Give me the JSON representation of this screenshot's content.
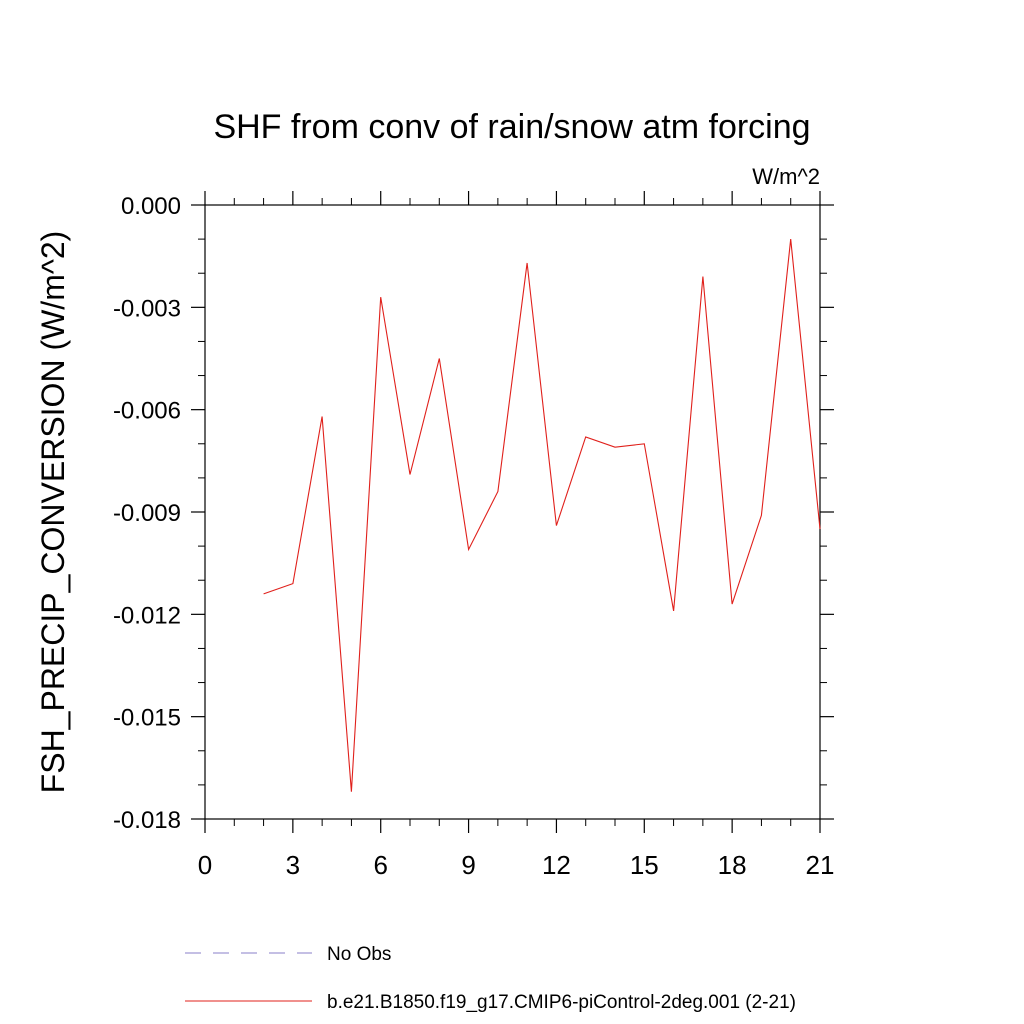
{
  "chart_data": {
    "type": "line",
    "title": "SHF from conv of rain/snow atm forcing",
    "units_label": "W/m^2",
    "ylabel": "FSH_PRECIP_CONVERSION  (W/m^2)",
    "xlabel": "",
    "xlim": [
      0,
      21
    ],
    "ylim": [
      -0.018,
      0.0
    ],
    "x_ticks": [
      0,
      3,
      6,
      9,
      12,
      15,
      18,
      21
    ],
    "x_tick_labels": [
      "0",
      "3",
      "6",
      "9",
      "12",
      "15",
      "18",
      "21"
    ],
    "y_ticks": [
      0.0,
      -0.003,
      -0.006,
      -0.009,
      -0.012,
      -0.015,
      -0.018
    ],
    "y_tick_labels": [
      "0.000",
      "-0.003",
      "-0.006",
      "-0.009",
      "-0.012",
      "-0.015",
      "-0.018"
    ],
    "grid": false,
    "legend_position": "bottom",
    "series": [
      {
        "name": "No Obs",
        "color": "#8a7fc8",
        "dash": true,
        "x": [],
        "y": []
      },
      {
        "name": "b.e21.B1850.f19_g17.CMIP6-piControl-2deg.001 (2-21)",
        "color": "#e0201b",
        "dash": false,
        "x": [
          2,
          3,
          4,
          5,
          6,
          7,
          8,
          9,
          10,
          11,
          12,
          13,
          14,
          15,
          16,
          17,
          18,
          19,
          20,
          21
        ],
        "y": [
          -0.0114,
          -0.0111,
          -0.0062,
          -0.0172,
          -0.0027,
          -0.0079,
          -0.0045,
          -0.0101,
          -0.0084,
          -0.0017,
          -0.0094,
          -0.0068,
          -0.0071,
          -0.007,
          -0.0119,
          -0.0021,
          -0.0117,
          -0.0091,
          -0.001,
          -0.0095
        ]
      }
    ]
  }
}
